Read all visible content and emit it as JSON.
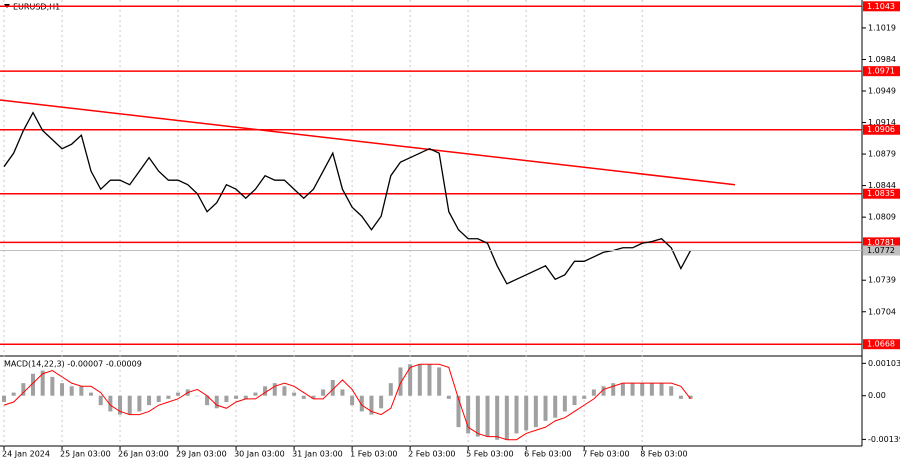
{
  "chart_data": [
    {
      "type": "line",
      "title": "EURUSD,H1",
      "categories": [
        "24 Jan 2024",
        null,
        null,
        null,
        null,
        null,
        "25 Jan 03:00",
        null,
        null,
        null,
        null,
        null,
        "26 Jan 03:00",
        null,
        null,
        null,
        null,
        null,
        "29 Jan 03:00",
        null,
        null,
        null,
        null,
        null,
        "30 Jan 03:00",
        null,
        null,
        null,
        null,
        null,
        "31 Jan 03:00",
        null,
        null,
        null,
        null,
        null,
        "1 Feb 03:00",
        null,
        null,
        null,
        null,
        null,
        "2 Feb 03:00",
        null,
        null,
        null,
        null,
        null,
        "5 Feb 03:00",
        null,
        null,
        null,
        null,
        null,
        "6 Feb 03:00",
        null,
        null,
        null,
        null,
        null,
        "7 Feb 03:00",
        null,
        null,
        null,
        null,
        null,
        "8 Feb 03:00",
        null,
        null,
        null,
        null,
        null
      ],
      "values": [
        1.0865,
        1.088,
        1.0905,
        1.0925,
        1.0905,
        1.0895,
        1.0885,
        1.089,
        1.09,
        1.086,
        1.084,
        1.085,
        1.085,
        1.0845,
        1.086,
        1.0875,
        1.086,
        1.085,
        1.085,
        1.0845,
        1.0835,
        1.0815,
        1.0825,
        1.0845,
        1.084,
        1.083,
        1.084,
        1.0855,
        1.085,
        1.085,
        1.084,
        1.083,
        1.084,
        1.086,
        1.088,
        1.084,
        1.082,
        1.081,
        1.0795,
        1.081,
        1.0855,
        1.087,
        1.0875,
        1.088,
        1.0885,
        1.088,
        1.0815,
        1.0795,
        1.0785,
        1.0785,
        1.078,
        1.0755,
        1.0735,
        1.074,
        1.0745,
        1.075,
        1.0755,
        1.074,
        1.0745,
        1.076,
        1.076,
        1.0765,
        1.077,
        1.0772,
        1.0775,
        1.0775,
        1.078,
        1.0782,
        1.0785,
        1.0775,
        1.0752,
        1.0772
      ],
      "color": "#000000",
      "ylim": [
        1.0656,
        1.105
      ],
      "yticks": [
        1.1019,
        1.0984,
        1.0949,
        1.0914,
        1.0879,
        1.0844,
        1.0809,
        1.0739,
        1.0704
      ],
      "levels": {
        "values": [
          1.1043,
          1.0971,
          1.0906,
          1.0835,
          1.0781,
          1.0668
        ],
        "color": "#ff0000"
      },
      "trendline": {
        "values": [
          1.0939,
          1.0845
        ],
        "color": "#ff0000"
      },
      "last_price": 1.0772
    },
    {
      "type": "bar",
      "title": "MACD(14,22,3) -0.00007 -0.00009",
      "values": [
        -0.0002,
        0.0001,
        0.0004,
        0.0007,
        0.0008,
        0.0006,
        0.0004,
        0.0003,
        0.0003,
        0.0001,
        -0.0003,
        -0.0005,
        -0.0006,
        -0.0006,
        -0.0005,
        -0.0003,
        -0.0002,
        -0.0001,
        0.0001,
        0.0002,
        0.0,
        -0.0003,
        -0.0004,
        -0.0002,
        -0.0001,
        -0.0001,
        0.0001,
        0.0003,
        0.0004,
        0.0003,
        0.0001,
        -0.0001,
        -0.0001,
        0.0002,
        0.0005,
        0.0002,
        -0.0003,
        -0.0005,
        -0.0006,
        -0.0004,
        0.0004,
        0.0009,
        0.001,
        0.001,
        0.001,
        0.0009,
        -0.0001,
        -0.001,
        -0.0012,
        -0.0013,
        -0.0013,
        -0.0014,
        -0.0014,
        -0.0012,
        -0.0011,
        -0.001,
        -0.0008,
        -0.0007,
        -0.0005,
        -0.0003,
        -0.0001,
        0.0002,
        0.0003,
        0.0004,
        0.0004,
        0.0004,
        0.0004,
        0.0004,
        0.0004,
        0.0003,
        -0.0001,
        -0.0001
      ],
      "signal": [
        -0.0003,
        -0.0002,
        0.0001,
        0.0004,
        0.0007,
        0.0008,
        0.0006,
        0.0004,
        0.0003,
        0.0003,
        0.0001,
        -0.0003,
        -0.0005,
        -0.0006,
        -0.0006,
        -0.0005,
        -0.0003,
        -0.0002,
        -0.0001,
        0.0001,
        0.0002,
        0.0,
        -0.0003,
        -0.0004,
        -0.0002,
        -0.0001,
        -0.0001,
        0.0001,
        0.0003,
        0.0004,
        0.0003,
        0.0001,
        -0.0001,
        -0.0001,
        0.0002,
        0.0005,
        0.0002,
        -0.0003,
        -0.0005,
        -0.0006,
        -0.0004,
        0.0004,
        0.0009,
        0.001,
        0.001,
        0.001,
        0.0009,
        -0.0001,
        -0.001,
        -0.0012,
        -0.0013,
        -0.0013,
        -0.0014,
        -0.0014,
        -0.0012,
        -0.0011,
        -0.001,
        -0.0008,
        -0.0007,
        -0.0005,
        -0.0003,
        -0.0001,
        0.0002,
        0.0003,
        0.0004,
        0.0004,
        0.0004,
        0.0004,
        0.0004,
        0.0004,
        0.0003,
        -0.0001
      ],
      "color": "#a0a0a0",
      "signal_color": "#ff0000",
      "ylim": [
        -0.0016,
        0.0012
      ],
      "yticks": [
        0.00103,
        {
          "value": 0,
          "label": "0.00"
        },
        -0.00139
      ]
    }
  ]
}
